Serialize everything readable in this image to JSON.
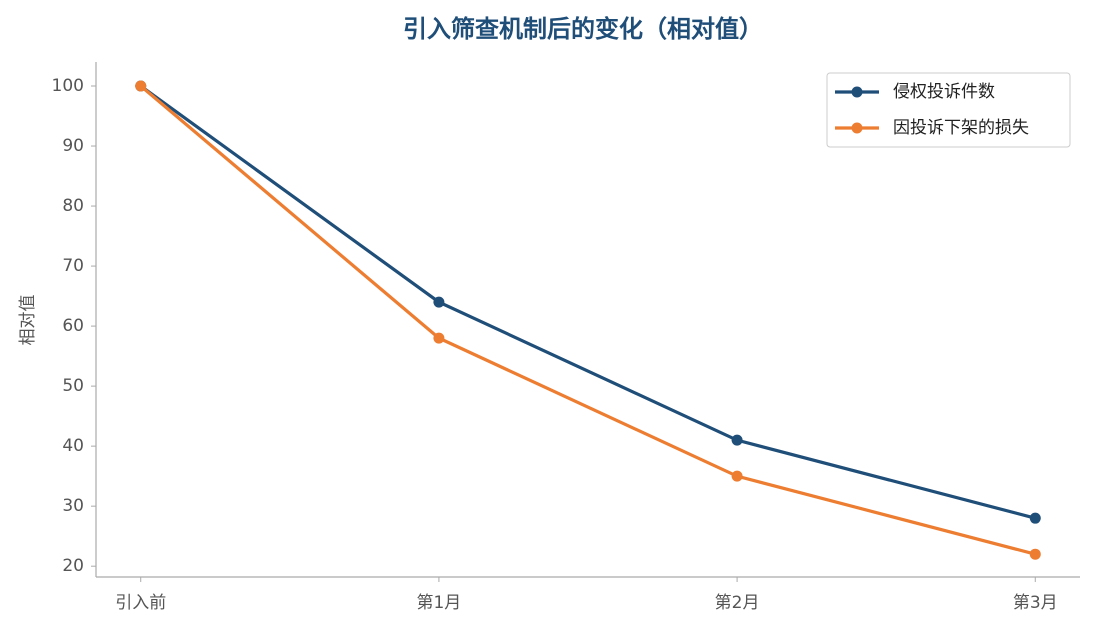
{
  "chart_data": {
    "type": "line",
    "title": "引入筛查机制后的变化（相对值）",
    "y_label": "相对值",
    "categories": [
      "引入前",
      "第1月",
      "第2月",
      "第3月"
    ],
    "series": [
      {
        "name": "侵权投诉件数",
        "color": "#1f4e79",
        "values": [
          100,
          64,
          41,
          28
        ]
      },
      {
        "name": "因投诉下架的损失",
        "color": "#ed7d31",
        "values": [
          100,
          58,
          35,
          22
        ]
      }
    ],
    "ylim": [
      18.2,
      104
    ],
    "yticks": [
      20,
      30,
      40,
      50,
      60,
      70,
      80,
      90,
      100
    ],
    "legend": "upper right"
  }
}
